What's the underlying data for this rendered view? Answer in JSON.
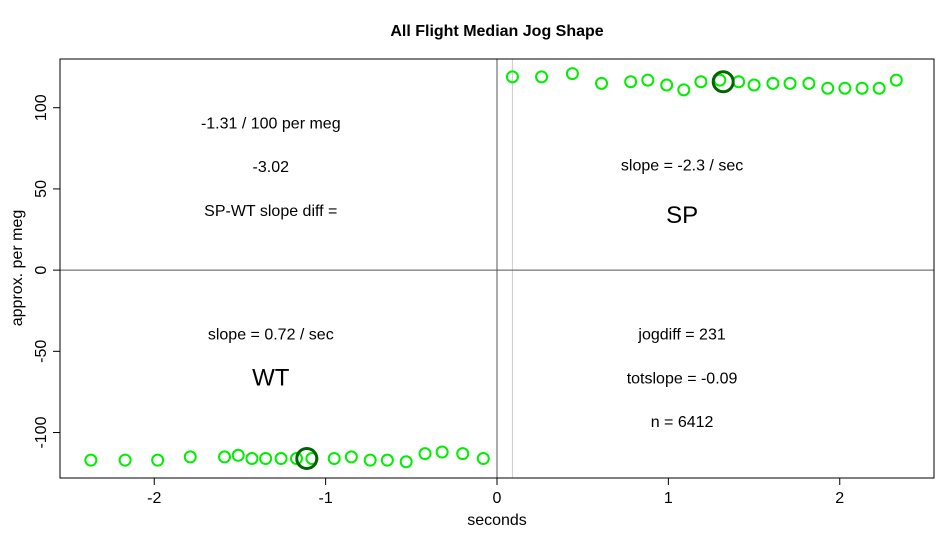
{
  "chart_data": {
    "type": "scatter",
    "title": "All Flight Median Jog Shape",
    "xlabel": "seconds",
    "ylabel": "approx. per meg",
    "xlim": [
      -2.55,
      2.55
    ],
    "ylim": [
      -128,
      130
    ],
    "x_ticks": [
      -2,
      -1,
      0,
      1,
      2
    ],
    "y_ticks": [
      -100,
      -50,
      0,
      50,
      100
    ],
    "hlines": [
      0
    ],
    "vlines": [
      0
    ],
    "gray_vline": 0.09,
    "colors": {
      "points": "#00ee00",
      "medians": "#006400",
      "axis": "#000000",
      "ref_line": "#555555",
      "gray_line": "#cccccc"
    },
    "series": [
      {
        "points": [
          [
            -2.37,
            -117
          ],
          [
            -2.17,
            -117
          ],
          [
            -1.98,
            -117
          ],
          [
            -1.79,
            -115
          ],
          [
            -1.59,
            -115
          ],
          [
            -1.51,
            -114
          ],
          [
            -1.43,
            -116
          ],
          [
            -1.35,
            -116
          ],
          [
            -1.26,
            -116
          ],
          [
            -1.17,
            -116
          ],
          [
            -1.08,
            -116
          ],
          [
            -0.95,
            -116
          ],
          [
            -0.85,
            -115
          ],
          [
            -0.74,
            -117
          ],
          [
            -0.64,
            -117
          ],
          [
            -0.53,
            -118
          ],
          [
            -0.42,
            -113
          ],
          [
            -0.32,
            -112
          ],
          [
            -0.2,
            -113
          ],
          [
            -0.08,
            -116
          ]
        ]
      },
      {
        "points": [
          [
            0.09,
            119
          ],
          [
            0.26,
            119
          ],
          [
            0.44,
            121
          ],
          [
            0.61,
            115
          ],
          [
            0.78,
            116
          ],
          [
            0.88,
            117
          ],
          [
            0.99,
            114
          ],
          [
            1.09,
            111
          ],
          [
            1.19,
            116
          ],
          [
            1.3,
            117
          ],
          [
            1.41,
            116
          ],
          [
            1.5,
            114
          ],
          [
            1.61,
            115
          ],
          [
            1.71,
            115
          ],
          [
            1.82,
            115
          ],
          [
            1.93,
            112
          ],
          [
            2.03,
            112
          ],
          [
            2.13,
            112
          ],
          [
            2.23,
            112
          ],
          [
            2.33,
            117
          ]
        ]
      }
    ],
    "medians": [
      [
        -1.11,
        -116
      ],
      [
        1.32,
        116
      ]
    ],
    "annotations": [
      {
        "x": -1.32,
        "y": 91,
        "text": "-1.31 / 100 per meg",
        "size": "normal"
      },
      {
        "x": -1.32,
        "y": 64,
        "text": "-3.02",
        "size": "normal"
      },
      {
        "x": -1.32,
        "y": 37,
        "text": "SP-WT slope diff =",
        "size": "normal"
      },
      {
        "x": 1.08,
        "y": 65,
        "text": "slope = -2.3 / sec",
        "size": "normal"
      },
      {
        "x": 1.08,
        "y": 34,
        "text": "SP",
        "size": "big"
      },
      {
        "x": -1.32,
        "y": -39,
        "text": "slope = 0.72 / sec",
        "size": "normal"
      },
      {
        "x": -1.32,
        "y": -66,
        "text": "WT",
        "size": "big"
      },
      {
        "x": 1.08,
        "y": -39,
        "text": "jogdiff = 231",
        "size": "normal"
      },
      {
        "x": 1.08,
        "y": -66,
        "text": "totslope = -0.09",
        "size": "normal"
      },
      {
        "x": 1.08,
        "y": -93,
        "text": "n = 6412",
        "size": "normal"
      }
    ]
  }
}
